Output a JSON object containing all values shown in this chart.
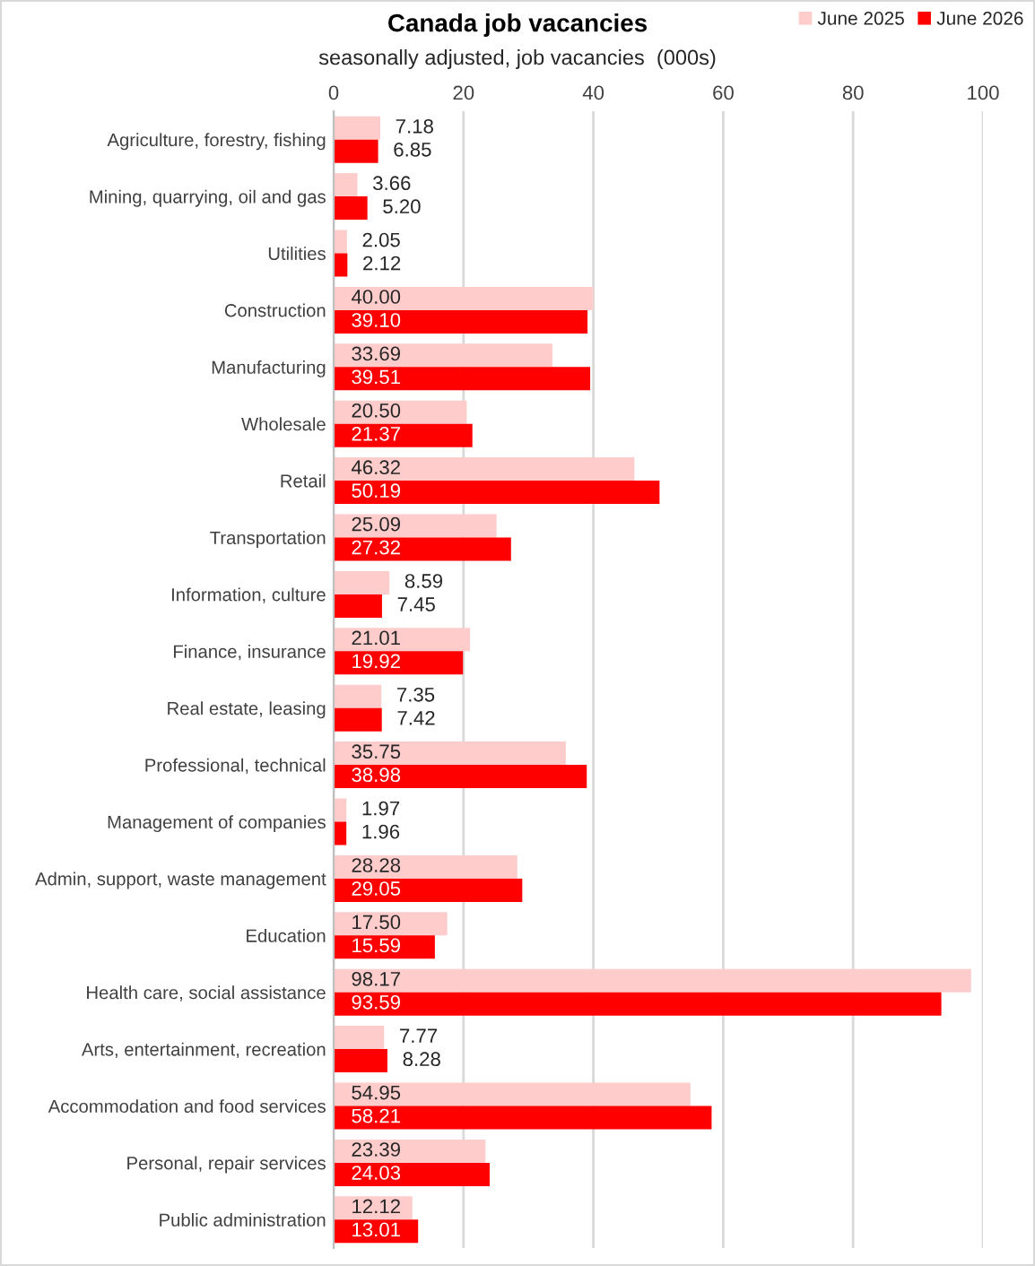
{
  "chart_data": {
    "type": "bar",
    "orientation": "horizontal",
    "title": "Canada job vacancies",
    "subtitle": "seasonally adjusted, job vacancies  (000s)",
    "categories": [
      "Agriculture, forestry, fishing",
      "Mining, quarrying, oil and gas",
      "Utilities",
      "Construction",
      "Manufacturing",
      "Wholesale",
      "Retail",
      "Transportation",
      "Information, culture",
      "Finance, insurance",
      "Real estate, leasing",
      "Professional, technical",
      "Management of companies",
      "Admin, support, waste management",
      "Education",
      "Health care, social assistance",
      "Arts, entertainment, recreation",
      "Accommodation and food services",
      "Personal, repair services",
      "Public administration"
    ],
    "series": [
      {
        "name": "June 2025",
        "color": "#ffcccc",
        "values": [
          7.18,
          3.66,
          2.05,
          40.0,
          33.69,
          20.5,
          46.32,
          25.09,
          8.59,
          21.01,
          7.35,
          35.75,
          1.97,
          28.28,
          17.5,
          98.17,
          7.77,
          54.95,
          23.39,
          12.12
        ],
        "value_labels": [
          "7.18",
          "3.66",
          "2.05",
          "40.00",
          "33.69",
          "20.50",
          "46.32",
          "25.09",
          "8.59",
          "21.01",
          "7.35",
          "35.75",
          "1.97",
          "28.28",
          "17.50",
          "98.17",
          "7.77",
          "54.95",
          "23.39",
          "12.12"
        ]
      },
      {
        "name": "June 2026",
        "color": "#ff0000",
        "values": [
          6.85,
          5.2,
          2.12,
          39.1,
          39.51,
          21.37,
          50.19,
          27.32,
          7.45,
          19.92,
          7.42,
          38.98,
          1.96,
          29.05,
          15.59,
          93.59,
          8.28,
          58.21,
          24.03,
          13.01
        ],
        "value_labels": [
          "6.85",
          "5.20",
          "2.12",
          "39.10",
          "39.51",
          "21.37",
          "50.19",
          "27.32",
          "7.45",
          "19.92",
          "7.42",
          "38.98",
          "1.96",
          "29.05",
          "15.59",
          "93.59",
          "8.28",
          "58.21",
          "24.03",
          "13.01"
        ]
      }
    ],
    "xlim": [
      0,
      100
    ],
    "xticks": [
      0,
      20,
      40,
      60,
      80,
      100
    ],
    "grid": "x",
    "legend": "top right"
  }
}
